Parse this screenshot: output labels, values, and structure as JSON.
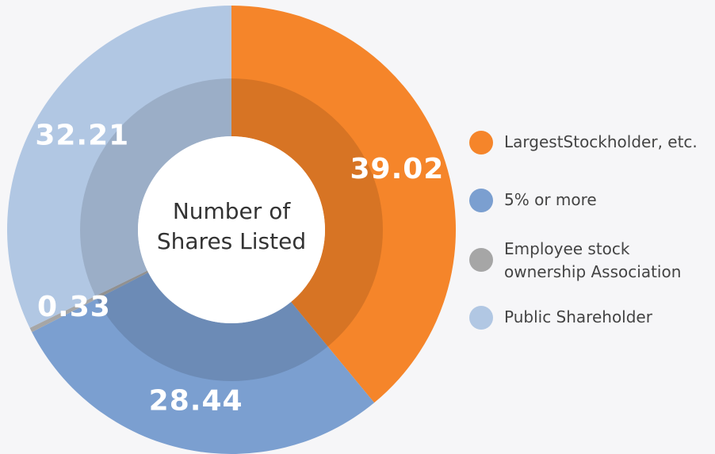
{
  "chart_data": {
    "type": "donut",
    "title": "Number of Shares Listed",
    "categories": [
      "LargestStockholder, etc.",
      "5% or more",
      "Employee stock ownership Association",
      "Public Shareholder"
    ],
    "values": [
      39.02,
      28.44,
      0.33,
      32.21
    ],
    "colors": [
      "#f5852a",
      "#7b9fd0",
      "#a6a6a6",
      "#b1c7e3"
    ]
  }
}
